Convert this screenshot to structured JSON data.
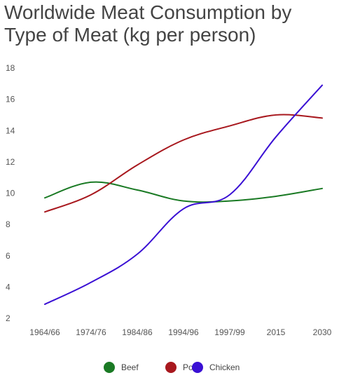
{
  "colors": {
    "beef": "#1a7a24",
    "pork": "#a8181e",
    "chicken": "#3a10d4"
  },
  "chart_data": {
    "type": "line",
    "title": "Worldwide Meat Consumption by Type of Meat (kg per person)",
    "xlabel": "",
    "ylabel": "",
    "categories": [
      "1964/66",
      "1974/76",
      "1984/86",
      "1994/96",
      "1997/99",
      "2015",
      "2030"
    ],
    "ylim": [
      2,
      18
    ],
    "yticks": [
      2,
      4,
      6,
      8,
      10,
      12,
      14,
      16,
      18
    ],
    "grid": false,
    "legend_position": "bottom",
    "series": [
      {
        "name": "Beef",
        "color": "#1a7a24",
        "values": [
          9.7,
          10.7,
          10.2,
          9.5,
          9.5,
          9.8,
          10.3
        ]
      },
      {
        "name": "Pork",
        "color": "#a8181e",
        "values": [
          8.8,
          9.9,
          11.8,
          13.4,
          14.3,
          15.0,
          14.8
        ]
      },
      {
        "name": "Chicken",
        "color": "#3a10d4",
        "values": [
          2.9,
          4.3,
          6.1,
          9.0,
          9.9,
          13.6,
          16.9
        ]
      }
    ]
  }
}
